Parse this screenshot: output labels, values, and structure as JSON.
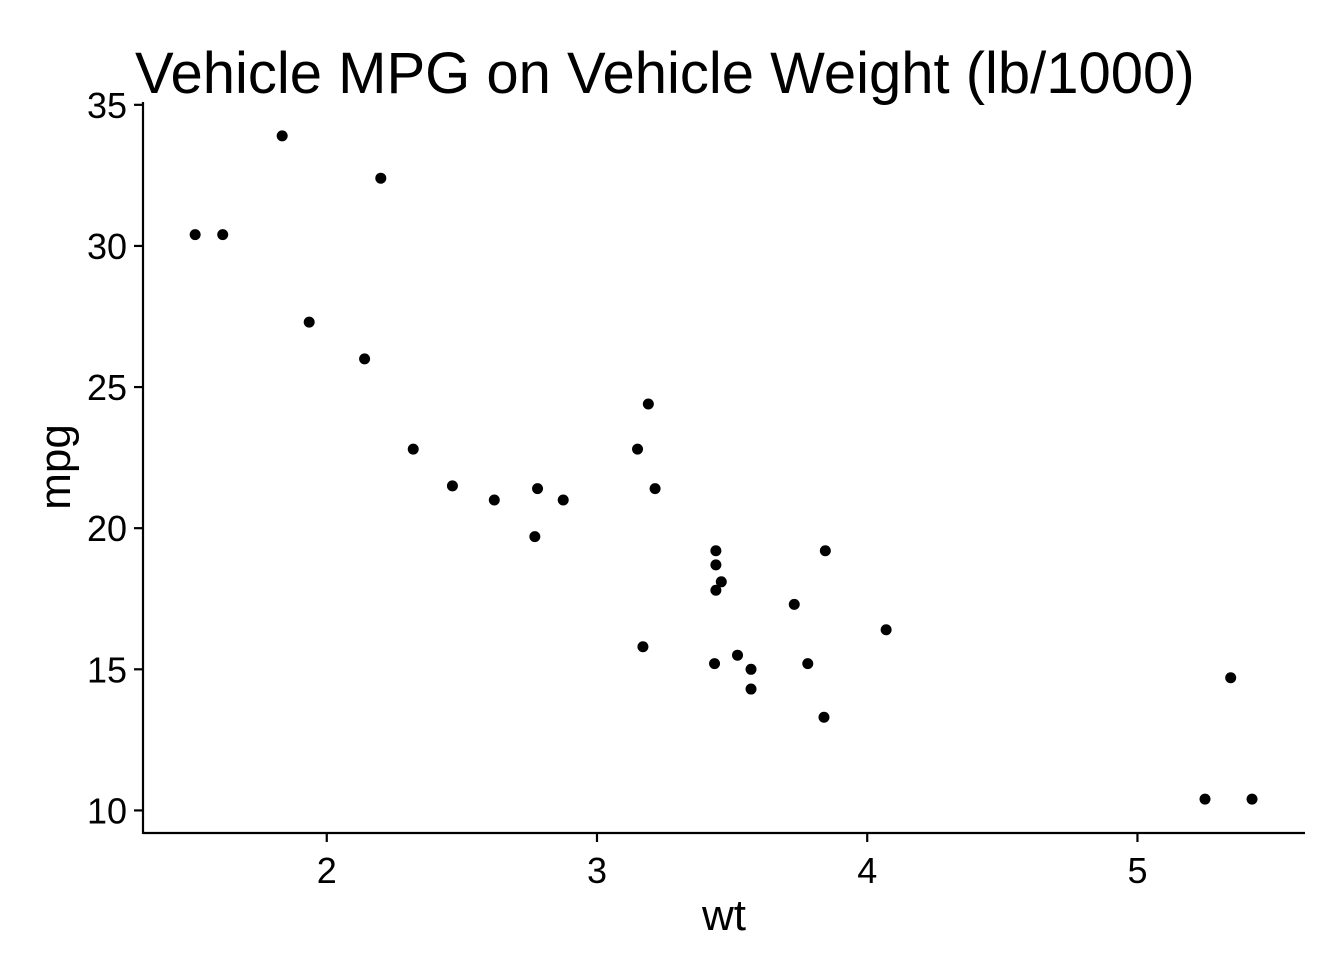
{
  "chart_data": {
    "type": "scatter",
    "title": "Vehicle MPG on Vehicle Weight (lb/1000)",
    "xlabel": "wt",
    "ylabel": "mpg",
    "xlim": [
      1.32,
      5.62
    ],
    "ylim": [
      9.2,
      35.1
    ],
    "xticks": [
      2,
      3,
      4,
      5
    ],
    "yticks": [
      10,
      15,
      20,
      25,
      30,
      35
    ],
    "grid": false,
    "legend": "none",
    "point_color": "#000000",
    "points": [
      {
        "x": 1.513,
        "y": 30.4
      },
      {
        "x": 1.615,
        "y": 30.4
      },
      {
        "x": 1.835,
        "y": 33.9
      },
      {
        "x": 1.935,
        "y": 27.3
      },
      {
        "x": 2.14,
        "y": 26.0
      },
      {
        "x": 2.2,
        "y": 32.4
      },
      {
        "x": 2.32,
        "y": 22.8
      },
      {
        "x": 2.465,
        "y": 21.5
      },
      {
        "x": 2.62,
        "y": 21.0
      },
      {
        "x": 2.77,
        "y": 19.7
      },
      {
        "x": 2.78,
        "y": 21.4
      },
      {
        "x": 2.875,
        "y": 21.0
      },
      {
        "x": 3.15,
        "y": 22.8
      },
      {
        "x": 3.17,
        "y": 15.8
      },
      {
        "x": 3.19,
        "y": 24.4
      },
      {
        "x": 3.215,
        "y": 21.4
      },
      {
        "x": 3.435,
        "y": 15.2
      },
      {
        "x": 3.44,
        "y": 18.7
      },
      {
        "x": 3.44,
        "y": 19.2
      },
      {
        "x": 3.44,
        "y": 17.8
      },
      {
        "x": 3.46,
        "y": 18.1
      },
      {
        "x": 3.52,
        "y": 15.5
      },
      {
        "x": 3.57,
        "y": 14.3
      },
      {
        "x": 3.57,
        "y": 15.0
      },
      {
        "x": 3.73,
        "y": 17.3
      },
      {
        "x": 3.78,
        "y": 15.2
      },
      {
        "x": 3.84,
        "y": 13.3
      },
      {
        "x": 3.845,
        "y": 19.2
      },
      {
        "x": 4.07,
        "y": 16.4
      },
      {
        "x": 5.25,
        "y": 10.4
      },
      {
        "x": 5.345,
        "y": 14.7
      },
      {
        "x": 5.424,
        "y": 10.4
      }
    ]
  }
}
